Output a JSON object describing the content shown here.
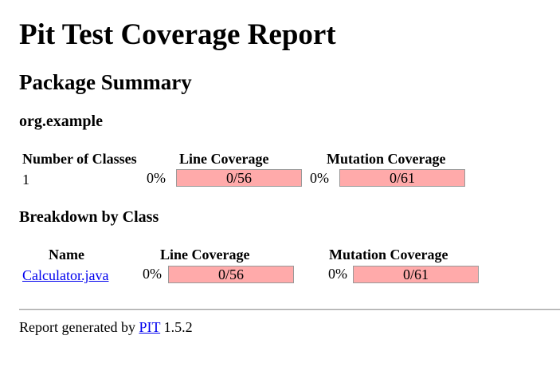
{
  "report": {
    "title": "Pit Test Coverage Report",
    "subtitle": "Package Summary",
    "package_name": "org.example"
  },
  "summary": {
    "headers": {
      "classes": "Number of Classes",
      "line": "Line Coverage",
      "mutation": "Mutation Coverage"
    },
    "classes": "1",
    "line_percent": "0%",
    "line_fraction": "0/56",
    "line_coverage": 0,
    "mutation_percent": "0%",
    "mutation_fraction": "0/61",
    "mutation_coverage": 0
  },
  "breakdown": {
    "title": "Breakdown by Class",
    "headers": {
      "name": "Name",
      "line": "Line Coverage",
      "mutation": "Mutation Coverage"
    },
    "rows": [
      {
        "name": "Calculator.java",
        "line_percent": "0%",
        "line_fraction": "0/56",
        "line_coverage": 0,
        "mutation_percent": "0%",
        "mutation_fraction": "0/61",
        "mutation_coverage": 0
      }
    ]
  },
  "footer": {
    "prefix": "Report generated by",
    "link": "PIT",
    "version": "1.5.2"
  },
  "colors": {
    "uncovered": "#ffaaaa",
    "covered": "#ddffdd",
    "link": "#0000ee"
  }
}
